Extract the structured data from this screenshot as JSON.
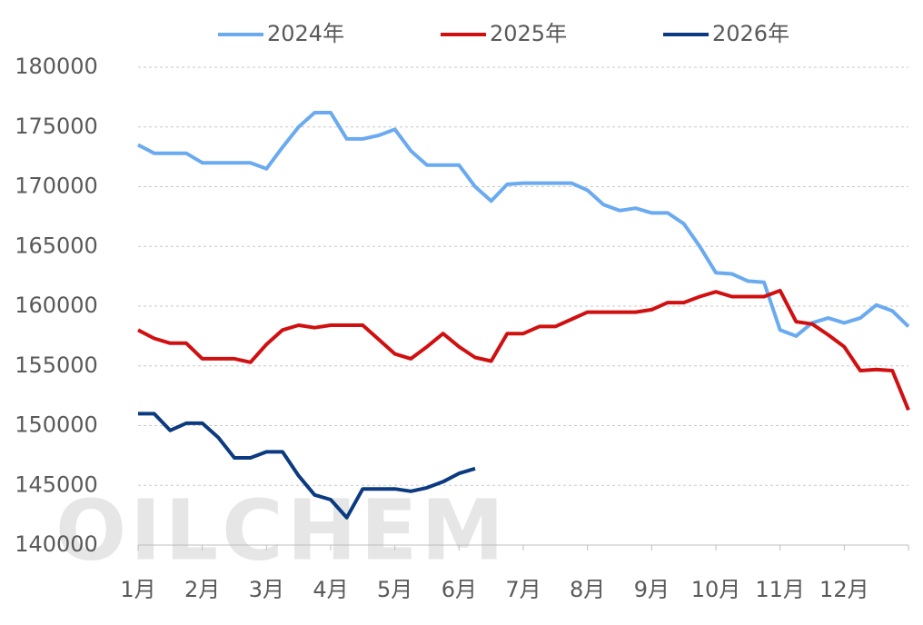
{
  "chart_data": {
    "type": "line",
    "watermark": "OILCHEM",
    "categories": [
      "1月",
      null,
      null,
      null,
      "2月",
      null,
      null,
      null,
      "3月",
      null,
      null,
      null,
      "4月",
      null,
      null,
      null,
      "5月",
      null,
      null,
      null,
      "6月",
      null,
      null,
      null,
      "7月",
      null,
      null,
      null,
      "8月",
      null,
      null,
      null,
      "9月",
      null,
      null,
      null,
      "10月",
      null,
      null,
      null,
      "11月",
      null,
      null,
      null,
      "12月",
      null,
      null,
      null,
      null
    ],
    "series": [
      {
        "name": "2024年",
        "color": "#6aaaf0",
        "values": [
          173500,
          172800,
          172800,
          172800,
          172000,
          172000,
          172000,
          172000,
          171500,
          173300,
          175000,
          176200,
          176200,
          174000,
          174000,
          174300,
          174800,
          173000,
          171800,
          171800,
          171800,
          170000,
          168800,
          170200,
          170300,
          170300,
          170300,
          170300,
          169700,
          168500,
          168000,
          168200,
          167800,
          167800,
          166900,
          165000,
          162800,
          162700,
          162100,
          162000,
          158000,
          157500,
          158600,
          159000,
          158600,
          159000,
          160100,
          159600,
          158300
        ]
      },
      {
        "name": "2025年",
        "color": "#d01010",
        "values": [
          158000,
          157300,
          156900,
          156900,
          155600,
          155600,
          155600,
          155300,
          156800,
          158000,
          158400,
          158200,
          158400,
          158400,
          158400,
          157200,
          156000,
          155600,
          156600,
          157700,
          156600,
          155700,
          155400,
          157700,
          157700,
          158300,
          158300,
          158900,
          159500,
          159500,
          159500,
          159500,
          159700,
          160300,
          160300,
          160800,
          161200,
          160800,
          160800,
          160800,
          161300,
          158700,
          158500,
          157600,
          156600,
          154600,
          154700,
          154600,
          151300
        ]
      },
      {
        "name": "2026年",
        "color": "#0b3a80",
        "values": [
          151000,
          151000,
          149600,
          150200,
          150200,
          149000,
          147300,
          147300,
          147800,
          147800,
          145800,
          144200,
          143800,
          142300,
          144700,
          144700,
          144700,
          144500,
          144800,
          145300,
          146000,
          146400,
          null,
          null,
          null,
          null,
          null,
          null,
          null,
          null,
          null,
          null,
          null,
          null,
          null,
          null,
          null,
          null,
          null,
          null,
          null,
          null,
          null,
          null,
          null,
          null,
          null,
          null,
          null
        ]
      }
    ],
    "ylim": [
      140000,
      180000
    ],
    "yticks": [
      140000,
      145000,
      150000,
      155000,
      160000,
      165000,
      170000,
      175000,
      180000
    ],
    "grid": true
  }
}
